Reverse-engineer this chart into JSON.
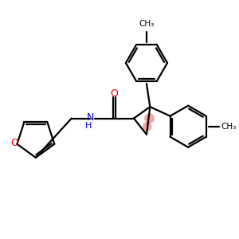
{
  "bg_color": "#ffffff",
  "bond_color": "#000000",
  "o_color": "#dd0000",
  "n_color": "#0000cc",
  "lw": 1.6,
  "figsize": [
    3.0,
    3.0
  ],
  "dpi": 100,
  "xlim": [
    0,
    10
  ],
  "ylim": [
    0,
    10
  ]
}
